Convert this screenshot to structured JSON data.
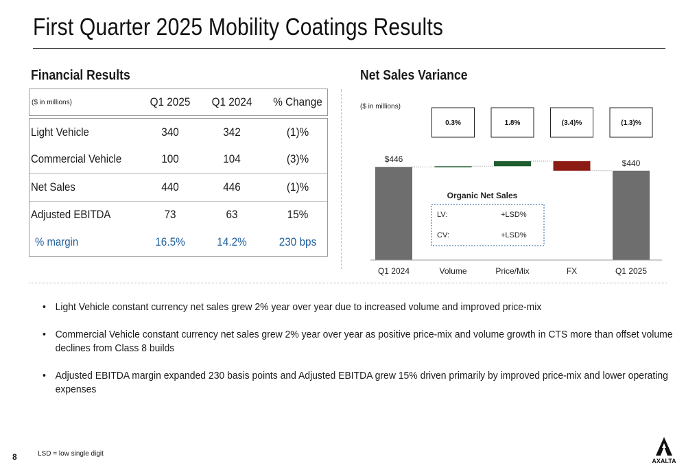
{
  "slide": {
    "title": "First Quarter 2025 Mobility Coatings Results",
    "page_number": "8",
    "footnote": "LSD = low single digit",
    "logo_text": "AXALTA"
  },
  "financial": {
    "heading": "Financial Results",
    "unit_label": "($ in millions)",
    "columns": [
      "Q1 2025",
      "Q1 2024",
      "% Change"
    ],
    "rows": [
      {
        "label": "Light Vehicle",
        "q1_2025": "340",
        "q1_2024": "342",
        "change": "(1)%"
      },
      {
        "label": "Commercial Vehicle",
        "q1_2025": "100",
        "q1_2024": "104",
        "change": "(3)%"
      },
      {
        "label": "Net Sales",
        "q1_2025": "440",
        "q1_2024": "446",
        "change": "(1)%"
      },
      {
        "label": "Adjusted EBITDA",
        "q1_2025": "73",
        "q1_2024": "63",
        "change": "15%"
      },
      {
        "label": "% margin",
        "q1_2025": "16.5%",
        "q1_2024": "14.2%",
        "change": "230 bps"
      }
    ]
  },
  "variance": {
    "heading": "Net Sales Variance",
    "organic_title": "Organic Net Sales",
    "organic_rows": [
      {
        "label": "LV:",
        "value": "+LSD%"
      },
      {
        "label": "CV:",
        "value": "+LSD%"
      }
    ]
  },
  "chart_data": {
    "type": "bar",
    "subtype": "waterfall",
    "unit_label": "($ in millions)",
    "categories": [
      "Q1 2024",
      "Volume",
      "Price/Mix",
      "FX",
      "Q1 2025"
    ],
    "values": [
      446,
      1,
      8,
      -15,
      440
    ],
    "kinds": [
      "total",
      "delta",
      "delta",
      "delta",
      "total"
    ],
    "value_labels": [
      "$446",
      "",
      "",
      "",
      "$440"
    ],
    "percent_boxes": [
      "",
      "0.3%",
      "1.8%",
      "(3.4)%",
      "(1.3)%"
    ],
    "colors": {
      "total": "#6e6e6e",
      "increase": "#1f5c2e",
      "decrease": "#8c1c13"
    }
  },
  "bullets": [
    "Light Vehicle constant currency net sales grew 2% year over year due to increased volume and improved price-mix",
    "Commercial Vehicle constant currency net sales grew 2% year over year as positive price-mix and volume growth in CTS more than offset volume declines from Class 8 builds",
    "Adjusted EBITDA margin expanded 230 basis points and Adjusted EBITDA grew 15% driven primarily by improved price-mix and lower operating expenses"
  ]
}
